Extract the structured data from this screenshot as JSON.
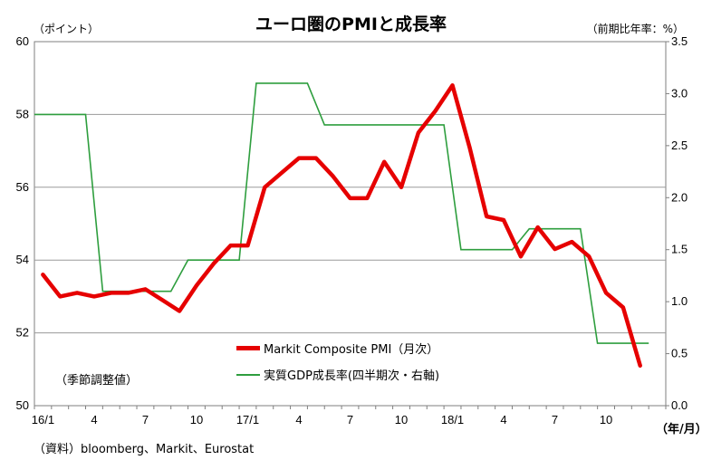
{
  "chart_data": {
    "type": "line",
    "title": "ユーロ圏のPMIと成長率",
    "y_left_label": "（ポイント）",
    "y_right_label": "（前期比年率：%）",
    "x_unit_label": "（年/月）",
    "note": "（季節調整値）",
    "source": "（資料）bloomberg、Markit、Eurostat",
    "y_left_ticks": [
      "50",
      "52",
      "54",
      "56",
      "58",
      "60"
    ],
    "y_right_ticks": [
      "0.0",
      "0.5",
      "1.0",
      "1.5",
      "2.0",
      "2.5",
      "3.0",
      "3.5"
    ],
    "ylim_left": [
      50,
      60
    ],
    "ylim_right": [
      0,
      3.5
    ],
    "grid": true,
    "legend_position": "bottom-center",
    "x_tick_labels": [
      {
        "i": 0,
        "label": "16/1"
      },
      {
        "i": 3,
        "label": "4"
      },
      {
        "i": 6,
        "label": "7"
      },
      {
        "i": 9,
        "label": "10"
      },
      {
        "i": 12,
        "label": "17/1"
      },
      {
        "i": 15,
        "label": "4"
      },
      {
        "i": 18,
        "label": "7"
      },
      {
        "i": 21,
        "label": "10"
      },
      {
        "i": 24,
        "label": "18/1"
      },
      {
        "i": 27,
        "label": "4"
      },
      {
        "i": 30,
        "label": "7"
      },
      {
        "i": 33,
        "label": "10"
      }
    ],
    "months": [
      "16/1",
      "16/2",
      "16/3",
      "16/4",
      "16/5",
      "16/6",
      "16/7",
      "16/8",
      "16/9",
      "16/10",
      "16/11",
      "16/12",
      "17/1",
      "17/2",
      "17/3",
      "17/4",
      "17/5",
      "17/6",
      "17/7",
      "17/8",
      "17/9",
      "17/10",
      "17/11",
      "17/12",
      "18/1",
      "18/2",
      "18/3",
      "18/4",
      "18/5",
      "18/6",
      "18/7",
      "18/8",
      "18/9",
      "18/10",
      "18/11",
      "18/12"
    ],
    "series": [
      {
        "name": "Markit Composite PMI（月次）",
        "axis": "left",
        "color": "#e60000",
        "values": [
          53.6,
          53.0,
          53.1,
          53.0,
          53.1,
          53.1,
          53.2,
          52.9,
          52.6,
          53.3,
          53.9,
          54.4,
          54.4,
          56.0,
          56.4,
          56.8,
          56.8,
          56.3,
          55.7,
          55.7,
          56.7,
          56.0,
          57.5,
          58.1,
          58.8,
          57.1,
          55.2,
          55.1,
          54.1,
          54.9,
          54.3,
          54.5,
          54.1,
          53.1,
          52.7,
          51.1
        ]
      },
      {
        "name": "実質GDP成長率(四半期次・右軸)",
        "axis": "right",
        "color": "#2e9e3e",
        "points": [
          {
            "m": 0,
            "v": 2.8
          },
          {
            "m": 3,
            "v": 2.8
          },
          {
            "m": 4,
            "v": 1.1
          },
          {
            "m": 8,
            "v": 1.1
          },
          {
            "m": 9,
            "v": 1.4
          },
          {
            "m": 12,
            "v": 1.4
          },
          {
            "m": 13,
            "v": 3.1
          },
          {
            "m": 16,
            "v": 3.1
          },
          {
            "m": 17,
            "v": 2.7
          },
          {
            "m": 20,
            "v": 2.7
          },
          {
            "m": 21,
            "v": 2.7
          },
          {
            "m": 24,
            "v": 2.7
          },
          {
            "m": 25,
            "v": 1.5
          },
          {
            "m": 28,
            "v": 1.5
          },
          {
            "m": 29,
            "v": 1.7
          },
          {
            "m": 32,
            "v": 1.7
          },
          {
            "m": 33,
            "v": 0.6
          },
          {
            "m": 36,
            "v": 0.6
          }
        ]
      }
    ]
  }
}
